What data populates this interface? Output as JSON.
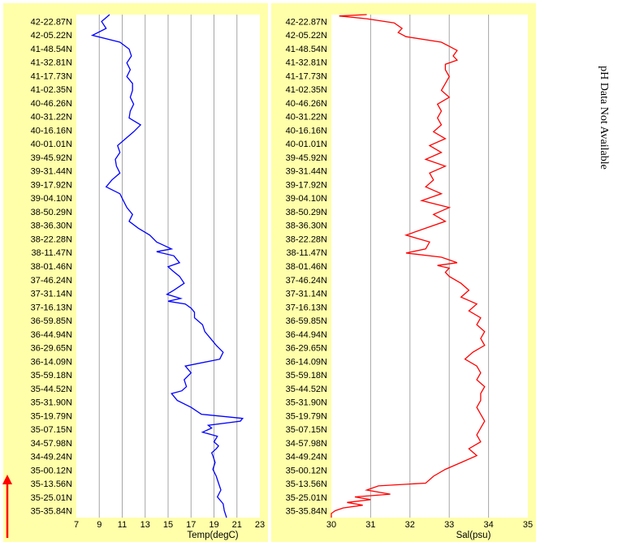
{
  "chart_data": [
    {
      "type": "line",
      "xlabel": "Temp(degC)",
      "xlim": [
        7,
        23
      ],
      "xticks": [
        "7",
        "9",
        "11",
        "13",
        "15",
        "17",
        "19",
        "21",
        "23"
      ],
      "ylabels": [
        "42-22.87N",
        "42-05.22N",
        "41-48.54N",
        "41-32.81N",
        "41-17.73N",
        "41-02.35N",
        "40-46.26N",
        "40-31.22N",
        "40-16.16N",
        "40-01.01N",
        "39-45.92N",
        "39-31.44N",
        "39-17.92N",
        "39-04.10N",
        "38-50.29N",
        "38-36.30N",
        "38-22.28N",
        "38-11.47N",
        "38-01.46N",
        "37-46.24N",
        "37-31.14N",
        "37-16.13N",
        "36-59.85N",
        "36-44.94N",
        "36-29.65N",
        "36-14.09N",
        "35-59.18N",
        "35-44.52N",
        "35-31.90N",
        "35-19.79N",
        "35-07.15N",
        "34-57.98N",
        "34-49.24N",
        "35-00.12N",
        "35-13.56N",
        "35-25.01N",
        "35-35.84N"
      ],
      "grid": "vertical",
      "line_color": "#0000ff",
      "series": [
        {
          "y_pos": [
            0,
            0.5,
            1,
            1.5,
            2,
            2.5,
            3,
            3.5,
            4,
            4.5,
            5,
            5.5,
            6,
            6.5,
            7,
            7.5,
            8,
            8.5,
            9,
            9.5,
            10,
            10.5,
            11,
            11.5,
            12,
            12.5,
            13,
            13.5,
            14,
            14.5,
            15,
            15.5,
            16,
            16.5,
            17,
            17.2,
            17.5,
            17.8,
            18,
            18.3,
            18.6,
            19,
            19.5,
            20,
            20.3,
            20.6,
            20.8,
            21,
            21.3,
            21.6,
            22,
            22.5,
            23,
            23.5,
            24,
            24.5,
            25,
            25.5,
            26,
            26.5,
            27,
            27.3,
            27.5,
            28,
            28.5,
            29,
            29.3,
            29.5,
            29.8,
            30,
            30.3,
            30.6,
            31,
            31.3,
            31.5,
            31.8,
            32,
            32.5,
            33,
            33.5,
            34,
            34.5,
            35,
            35.5,
            36,
            36.5
          ],
          "values": [
            9.9,
            9.2,
            9.6,
            8.4,
            10.8,
            11.6,
            11.8,
            11.4,
            11.7,
            11.4,
            11.9,
            11.9,
            11.7,
            12.0,
            11.7,
            11.6,
            12.6,
            12.0,
            11.3,
            10.6,
            10.8,
            10.4,
            10.5,
            10.8,
            10.1,
            9.6,
            10.8,
            11.1,
            11.4,
            11.9,
            11.6,
            12.4,
            13.4,
            14.0,
            15.3,
            14.0,
            15.5,
            15.8,
            16.0,
            15.0,
            15.4,
            16.0,
            16.4,
            15.5,
            14.9,
            16.1,
            15.0,
            16.5,
            17.0,
            17.3,
            17.3,
            18.0,
            18.2,
            18.7,
            19.2,
            19.8,
            19.5,
            16.5,
            17.0,
            16.4,
            16.6,
            16.2,
            15.3,
            15.8,
            17.0,
            17.9,
            21.5,
            21.3,
            18.5,
            18.8,
            18.0,
            19.3,
            19.0,
            19.4,
            19.2,
            18.8,
            18.9,
            19.1,
            18.9,
            19.2,
            19.4,
            19.6,
            19.3,
            19.8,
            19.9,
            20.1
          ]
        }
      ]
    },
    {
      "type": "line",
      "xlabel": "Sal(psu)",
      "xlim": [
        30,
        35
      ],
      "xticks": [
        "30",
        "31",
        "32",
        "33",
        "34",
        "35"
      ],
      "ylabels": [
        "42-22.87N",
        "42-05.22N",
        "41-48.54N",
        "41-32.81N",
        "41-17.73N",
        "41-02.35N",
        "40-46.26N",
        "40-31.22N",
        "40-16.16N",
        "40-01.01N",
        "39-45.92N",
        "39-31.44N",
        "39-17.92N",
        "39-04.10N",
        "38-50.29N",
        "38-36.30N",
        "38-22.28N",
        "38-11.47N",
        "38-01.46N",
        "37-46.24N",
        "37-31.14N",
        "37-16.13N",
        "36-59.85N",
        "36-44.94N",
        "36-29.65N",
        "36-14.09N",
        "35-59.18N",
        "35-44.52N",
        "35-31.90N",
        "35-19.79N",
        "35-07.15N",
        "34-57.98N",
        "34-49.24N",
        "35-00.12N",
        "35-13.56N",
        "35-25.01N",
        "35-35.84N"
      ],
      "grid": "vertical",
      "line_color": "#ff0000",
      "series": [
        {
          "y_pos": [
            0,
            0.1,
            0.3,
            0.6,
            1,
            1.3,
            1.6,
            2,
            2.3,
            2.6,
            3,
            3.3,
            3.6,
            4,
            4.5,
            5,
            5.5,
            6,
            6.5,
            7,
            7.5,
            8,
            8.5,
            9,
            9.5,
            10,
            10.5,
            11,
            11.5,
            12,
            12.5,
            13,
            13.5,
            14,
            14.5,
            15,
            15.5,
            16,
            16.5,
            17,
            17.3,
            17.6,
            18,
            18.2,
            18.4,
            18.7,
            19,
            19.5,
            20,
            20.5,
            21,
            21.5,
            22,
            22.5,
            23,
            23.5,
            24,
            24.5,
            25,
            25.5,
            26,
            26.5,
            27,
            27.5,
            28,
            28.5,
            29,
            29.5,
            30,
            30.5,
            31,
            31.5,
            32,
            32.5,
            33,
            33.5,
            34,
            34.2,
            34.5,
            34.8,
            35,
            35.2,
            35.4,
            35.6,
            35.8,
            36,
            36.2,
            36.5
          ],
          "values": [
            30.9,
            30.2,
            30.9,
            31.6,
            31.8,
            31.7,
            31.9,
            32.8,
            33.0,
            33.2,
            33.1,
            33.2,
            32.9,
            32.9,
            33.0,
            32.9,
            32.8,
            33.0,
            32.7,
            32.8,
            32.7,
            32.8,
            32.6,
            32.9,
            32.5,
            32.8,
            32.4,
            32.9,
            32.5,
            32.6,
            32.4,
            32.8,
            32.3,
            33.0,
            32.6,
            32.9,
            32.4,
            31.9,
            32.5,
            32.4,
            31.9,
            32.8,
            33.2,
            32.7,
            33.0,
            32.9,
            33.0,
            33.3,
            33.5,
            33.3,
            33.7,
            33.5,
            33.8,
            33.7,
            33.9,
            33.8,
            33.9,
            33.6,
            33.4,
            33.7,
            33.8,
            33.7,
            33.9,
            33.8,
            33.8,
            33.7,
            33.8,
            33.9,
            33.8,
            33.7,
            33.8,
            33.5,
            33.7,
            33.3,
            32.9,
            32.6,
            32.4,
            31.2,
            30.9,
            31.5,
            30.6,
            31.0,
            30.4,
            30.8,
            30.3,
            30.1,
            30.0,
            30.0
          ]
        }
      ]
    }
  ],
  "side_note": "pH Data Not Available",
  "colors": {
    "panel_bg": "#ffffaa",
    "plot_bg": "#ffffff",
    "grid": "#a6a6a6",
    "arrow": "#ff0000"
  }
}
